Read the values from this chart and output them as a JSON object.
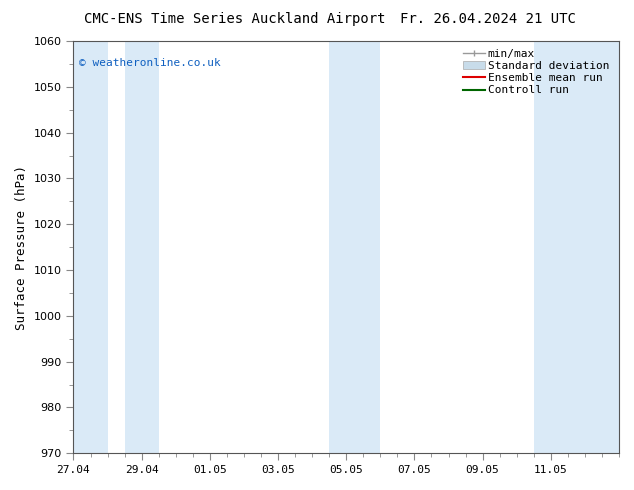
{
  "title_left": "CMC-ENS Time Series Auckland Airport",
  "title_right": "Fr. 26.04.2024 21 UTC",
  "ylabel": "Surface Pressure (hPa)",
  "ylim": [
    970,
    1060
  ],
  "yticks": [
    970,
    980,
    990,
    1000,
    1010,
    1020,
    1030,
    1040,
    1050,
    1060
  ],
  "xlim_start": 0.0,
  "xlim_end": 16.0,
  "xtick_labels": [
    "27.04",
    "29.04",
    "01.05",
    "03.05",
    "05.05",
    "07.05",
    "09.05",
    "11.05"
  ],
  "xtick_positions": [
    0.0,
    2.0,
    4.0,
    6.0,
    8.0,
    10.0,
    12.0,
    14.0
  ],
  "shaded_bands": [
    {
      "x_start": 0.0,
      "x_end": 1.0,
      "color": "#daeaf7"
    },
    {
      "x_start": 1.5,
      "x_end": 2.5,
      "color": "#daeaf7"
    },
    {
      "x_start": 7.5,
      "x_end": 9.0,
      "color": "#daeaf7"
    },
    {
      "x_start": 13.5,
      "x_end": 16.0,
      "color": "#daeaf7"
    }
  ],
  "watermark_text": "© weatheronline.co.uk",
  "watermark_color": "#1060c0",
  "legend_labels": [
    "min/max",
    "Standard deviation",
    "Ensemble mean run",
    "Controll run"
  ],
  "legend_minmax_color": "#999999",
  "legend_std_color": "#c8dcea",
  "legend_ens_color": "#dd0000",
  "legend_ctrl_color": "#006600",
  "bg_color": "#ffffff",
  "plot_bg_color": "#ffffff",
  "title_fontsize": 10,
  "tick_fontsize": 8,
  "label_fontsize": 9,
  "legend_fontsize": 8
}
